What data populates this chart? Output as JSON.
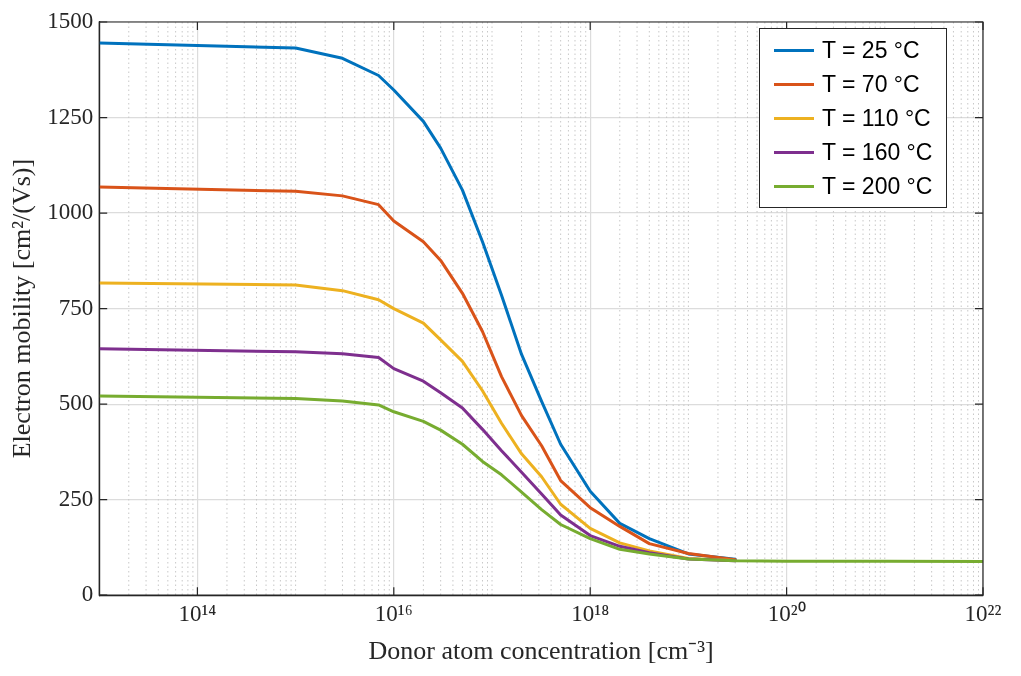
{
  "chart_data": {
    "type": "line",
    "xlabel": "Donor atom concentration [cm⁻³]",
    "ylabel": "Electron mobility [cm²/(Vs)]",
    "log": "x",
    "grid": true,
    "legend": "top right",
    "line_style": "solid",
    "marker": "none",
    "xlim": [
      10000000000000.0,
      1e+22
    ],
    "xticks": [
      {
        "value": 100000000000000.0,
        "label": "10¹⁴"
      },
      {
        "value": 1e+16,
        "label": "10¹⁶"
      },
      {
        "value": 1e+18,
        "label": "10¹⁸"
      },
      {
        "value": 1e+20,
        "label": "10²⁰"
      },
      {
        "value": 1e+22,
        "label": "10²²"
      }
    ],
    "ylim": [
      0,
      1500
    ],
    "yticks": [
      0,
      250,
      500,
      750,
      1000,
      1250,
      1500
    ],
    "x": [
      10000000000000.0,
      1000000000000000.0,
      3000000000000000.0,
      7000000000000000.0,
      1e+16,
      2e+16,
      3e+16,
      5e+16,
      8e+16,
      1.25e+17,
      2e+17,
      3.2e+17,
      5e+17,
      1e+18,
      2e+18,
      4e+18,
      1e+19,
      3e+19,
      1e+20,
      1e+21,
      1e+22
    ],
    "series": [
      {
        "name": "T = 25 °C",
        "color": "#0072bd",
        "values": [
          1445,
          1432,
          1405,
          1360,
          1322,
          1240,
          1170,
          1060,
          925,
          785,
          630,
          507,
          395,
          272,
          188,
          148,
          108,
          94,
          null,
          null,
          null
        ]
      },
      {
        "name": "T = 70 °C",
        "color": "#d95319",
        "values": [
          1068,
          1057,
          1045,
          1022,
          979,
          925,
          876,
          790,
          690,
          572,
          470,
          391,
          300,
          229,
          180,
          135,
          109,
          93,
          null,
          null,
          null
        ]
      },
      {
        "name": "T = 110 °C",
        "color": "#edb120",
        "values": [
          817,
          812,
          797,
          773,
          750,
          712,
          668,
          612,
          535,
          450,
          370,
          310,
          238,
          175,
          137,
          116,
          96,
          91,
          null,
          null,
          null
        ]
      },
      {
        "name": "T = 160 °C",
        "color": "#7e2f8e",
        "values": [
          645,
          637,
          632,
          622,
          593,
          560,
          530,
          490,
          434,
          378,
          322,
          265,
          210,
          156,
          128,
          111,
          95,
          90,
          null,
          null,
          null
        ]
      },
      {
        "name": "T = 200 °C",
        "color": "#77ac30",
        "values": [
          521,
          515,
          508,
          498,
          480,
          455,
          432,
          395,
          350,
          315,
          270,
          224,
          185,
          148,
          120,
          108,
          95,
          90,
          89,
          89,
          88
        ]
      }
    ]
  }
}
